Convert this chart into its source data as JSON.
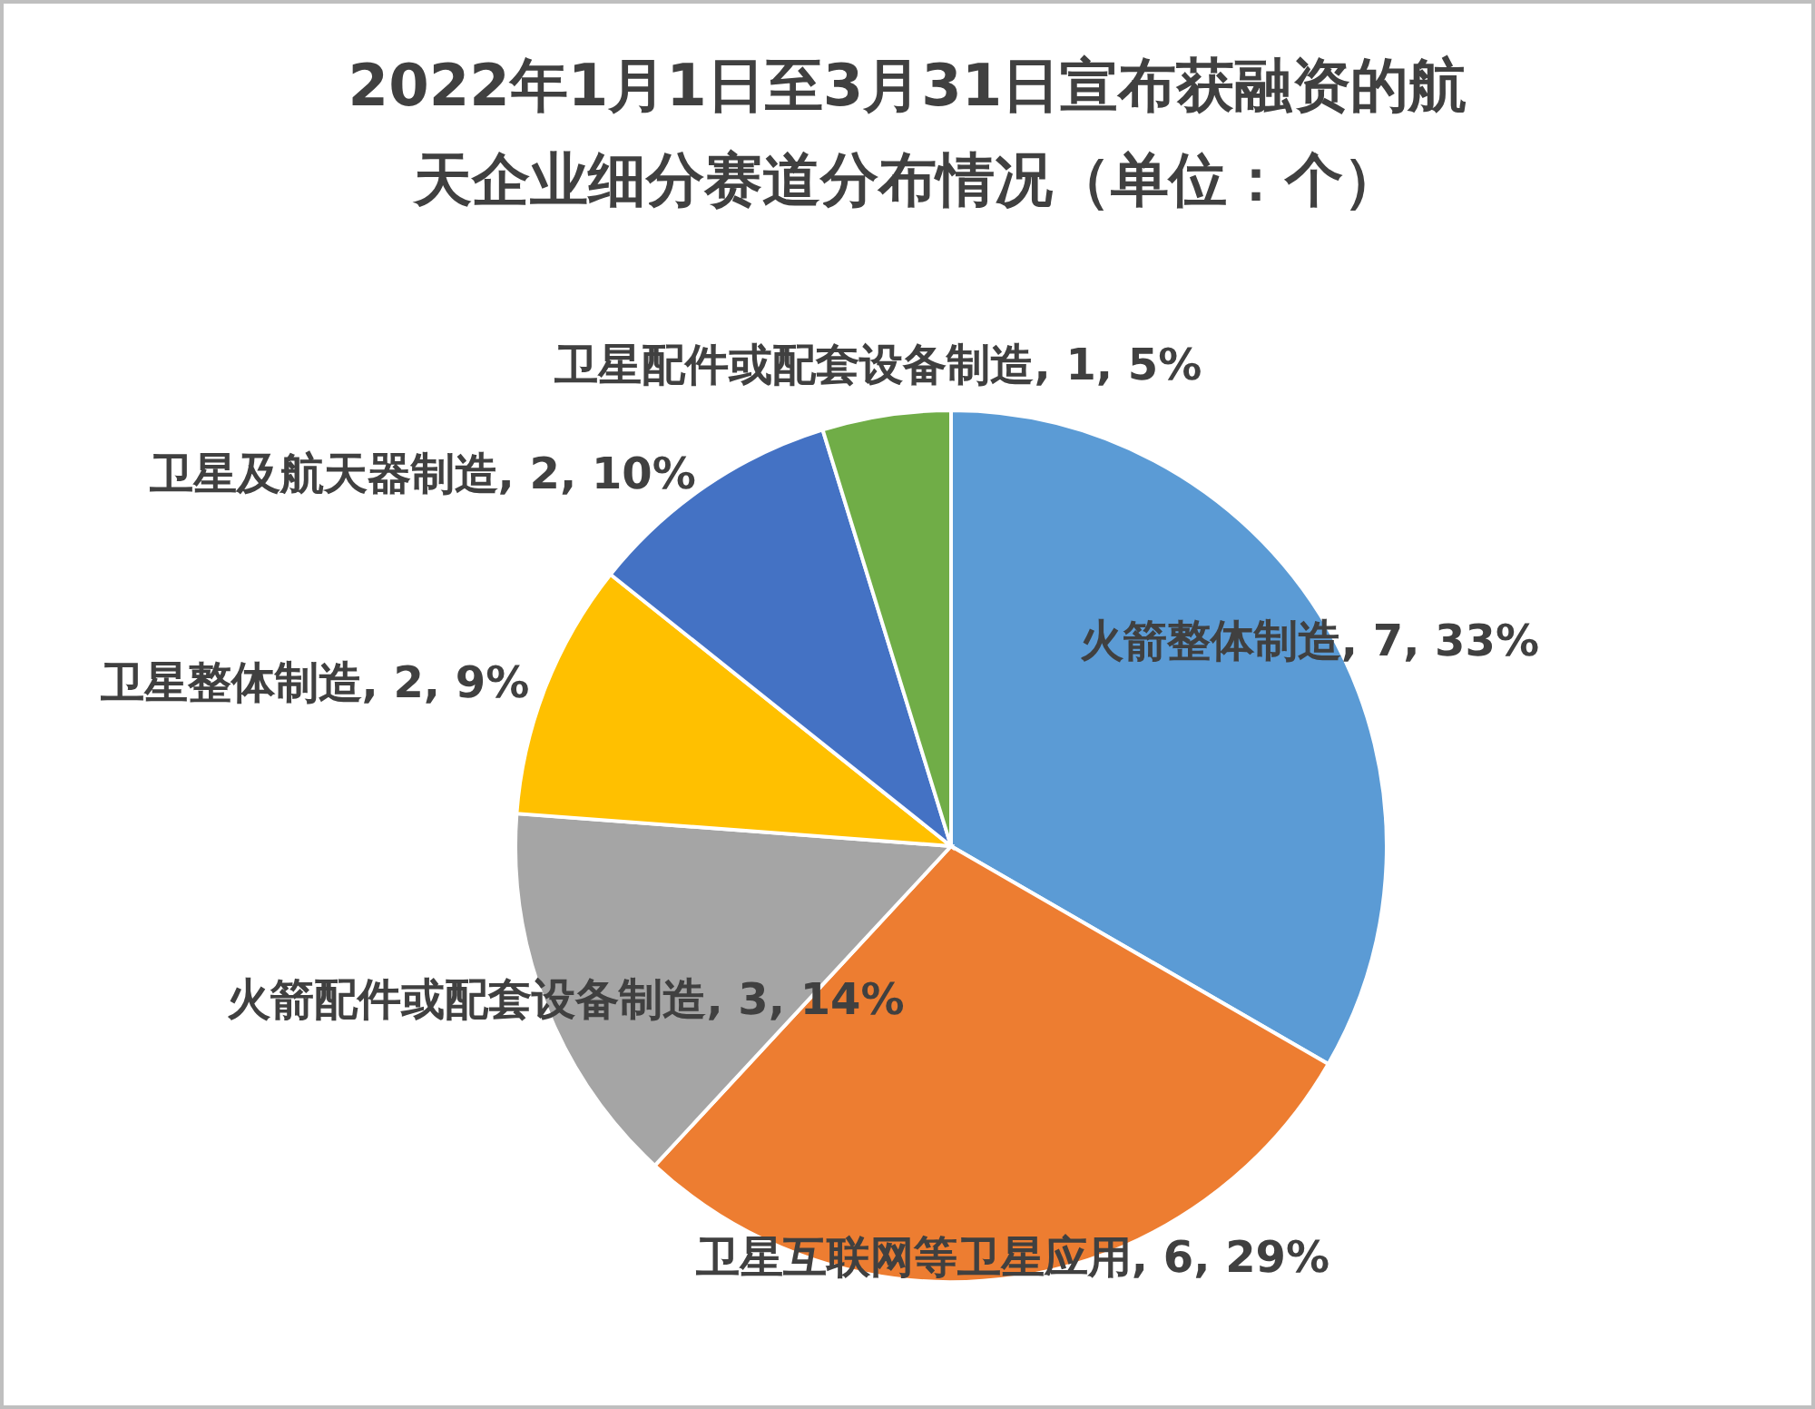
{
  "chart_data": {
    "type": "pie",
    "title": "2022年1月1日至3月31日宣布获融资的航天企业细分赛道分布情况（单位：个）",
    "categories": [
      "火箭整体制造",
      "卫星互联网等卫星应用",
      "火箭配件或配套设备制造",
      "卫星整体制造",
      "卫星及航天器制造",
      "卫星配件或配套设备制造"
    ],
    "values": [
      7,
      6,
      3,
      2,
      2,
      1
    ],
    "value_labels": [
      "7, 33%",
      "6, 29%",
      "3, 14%",
      "2, 9%",
      "2, 10%",
      "1, 5%"
    ],
    "colors": [
      "#5b9bd5",
      "#ed7d31",
      "#a5a5a5",
      "#ffc000",
      "#4472c4",
      "#70ad47"
    ]
  }
}
